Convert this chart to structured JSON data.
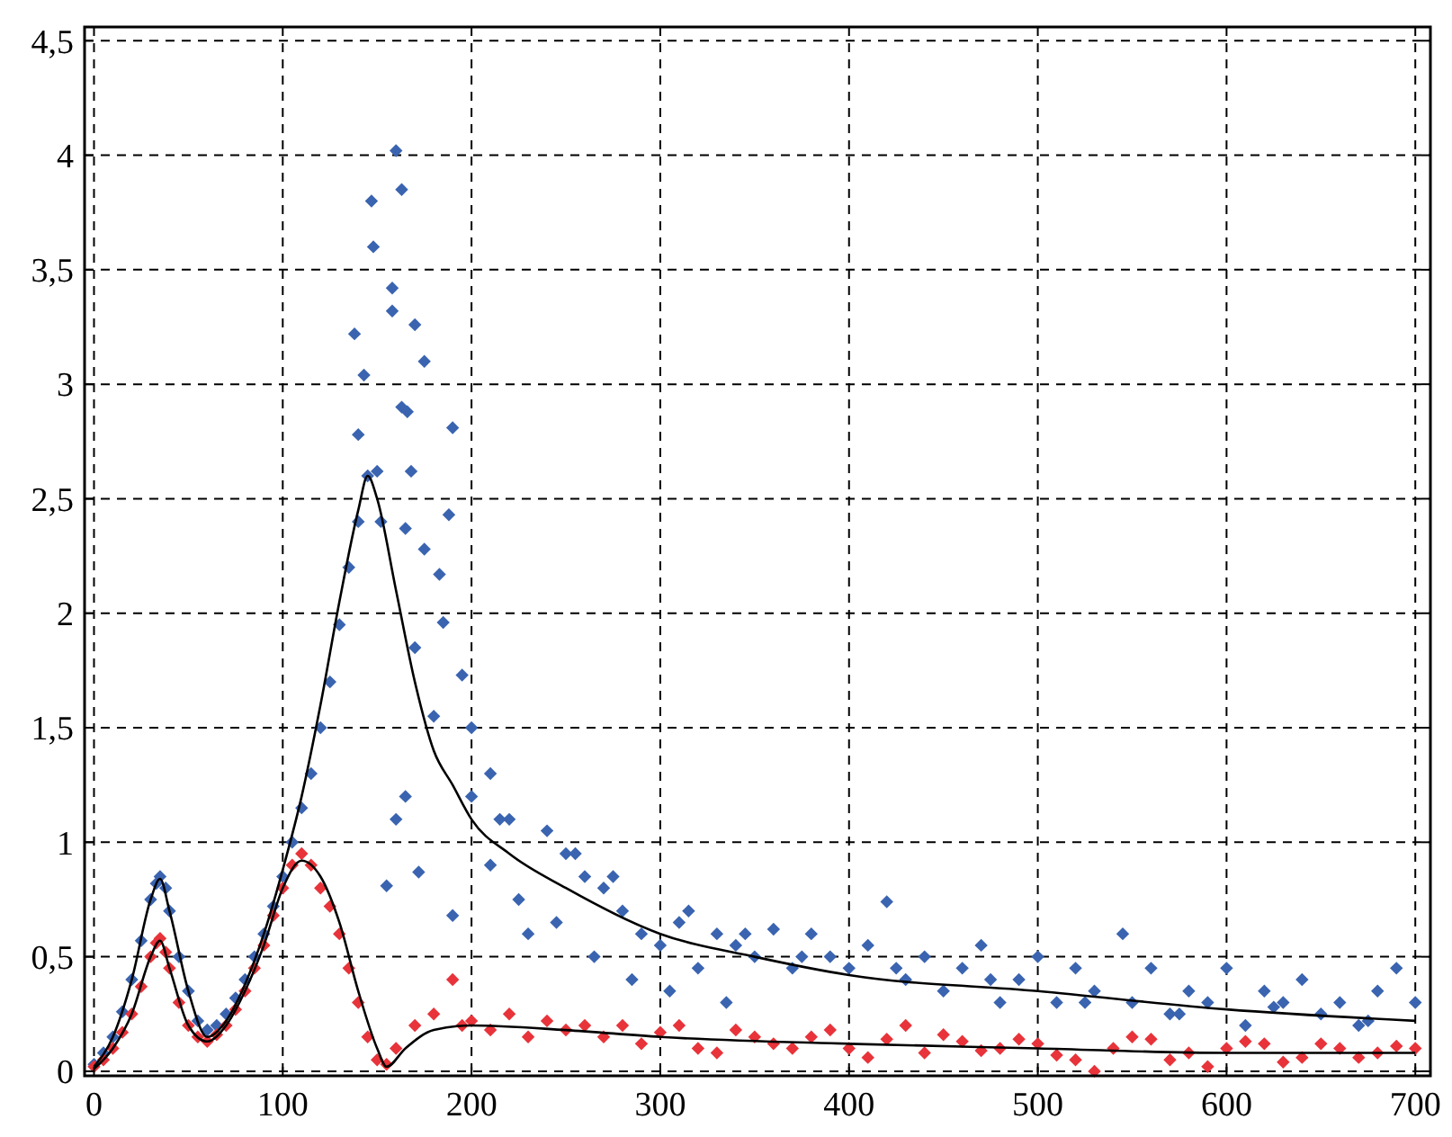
{
  "chart_data": {
    "type": "scatter",
    "grid": true,
    "xlim": [
      -5,
      708
    ],
    "ylim": [
      -0.02,
      4.56
    ],
    "xticks": [
      0,
      100,
      200,
      300,
      400,
      500,
      600,
      700
    ],
    "yticks": [
      0,
      {
        "value": 0.5,
        "label": "0,5"
      },
      1,
      {
        "value": 1.5,
        "label": "1,5"
      },
      2,
      {
        "value": 2.5,
        "label": "2,5"
      },
      3,
      {
        "value": 3.5,
        "label": "3,5"
      },
      4,
      {
        "value": 4.5,
        "label": "4,5"
      }
    ],
    "series": [
      {
        "marker": "diamond",
        "color": "#3a64b0",
        "x": [
          0,
          5,
          10,
          15,
          20,
          25,
          30,
          33,
          35,
          38,
          40,
          45,
          50,
          55,
          60,
          65,
          70,
          75,
          80,
          85,
          90,
          95,
          100,
          105,
          110,
          115,
          120,
          125,
          130,
          135,
          140,
          145,
          138,
          143,
          147,
          148,
          152,
          140,
          150,
          160,
          163,
          158,
          158,
          163,
          166,
          170,
          175,
          168,
          190,
          188,
          165,
          175,
          183,
          185,
          195,
          200,
          170,
          180,
          160,
          155,
          165,
          172,
          190,
          200,
          210,
          220,
          230,
          240,
          250,
          260,
          270,
          280,
          290,
          300,
          310,
          320,
          330,
          340,
          350,
          360,
          370,
          380,
          390,
          400,
          410,
          420,
          430,
          440,
          450,
          460,
          470,
          480,
          490,
          500,
          510,
          520,
          530,
          545,
          550,
          560,
          570,
          580,
          590,
          600,
          610,
          620,
          630,
          640,
          650,
          660,
          670,
          680,
          690,
          700,
          210,
          225,
          245,
          265,
          285,
          305,
          335,
          215,
          255,
          275,
          315,
          345,
          375,
          425,
          475,
          525,
          575,
          625,
          675
        ],
        "values": [
          0.03,
          0.08,
          0.15,
          0.26,
          0.4,
          0.57,
          0.75,
          0.82,
          0.85,
          0.8,
          0.7,
          0.5,
          0.35,
          0.22,
          0.18,
          0.2,
          0.25,
          0.32,
          0.4,
          0.5,
          0.6,
          0.72,
          0.85,
          1.0,
          1.15,
          1.3,
          1.5,
          1.7,
          1.95,
          2.2,
          2.4,
          2.6,
          3.22,
          3.04,
          3.8,
          3.6,
          2.4,
          2.78,
          2.62,
          4.02,
          3.85,
          3.42,
          3.32,
          2.9,
          2.88,
          3.26,
          3.1,
          2.62,
          2.81,
          2.43,
          2.37,
          2.28,
          2.17,
          1.96,
          1.73,
          1.5,
          1.85,
          1.55,
          1.1,
          0.81,
          1.2,
          0.87,
          0.68,
          1.2,
          1.3,
          1.1,
          0.6,
          1.05,
          0.95,
          0.85,
          0.8,
          0.7,
          0.6,
          0.55,
          0.65,
          0.45,
          0.6,
          0.55,
          0.5,
          0.62,
          0.45,
          0.6,
          0.5,
          0.45,
          0.55,
          0.74,
          0.4,
          0.5,
          0.35,
          0.45,
          0.55,
          0.3,
          0.4,
          0.5,
          0.3,
          0.45,
          0.35,
          0.6,
          0.3,
          0.45,
          0.25,
          0.35,
          0.3,
          0.45,
          0.2,
          0.35,
          0.3,
          0.4,
          0.25,
          0.3,
          0.2,
          0.35,
          0.45,
          0.3,
          0.9,
          0.75,
          0.65,
          0.5,
          0.4,
          0.35,
          0.3,
          1.1,
          0.95,
          0.85,
          0.7,
          0.6,
          0.5,
          0.45,
          0.4,
          0.3,
          0.25,
          0.28,
          0.22
        ]
      },
      {
        "marker": "diamond",
        "color": "#e8333a",
        "x": [
          0,
          5,
          10,
          15,
          20,
          25,
          30,
          33,
          35,
          38,
          40,
          45,
          50,
          55,
          60,
          65,
          70,
          75,
          80,
          85,
          90,
          95,
          100,
          105,
          110,
          115,
          120,
          125,
          130,
          135,
          140,
          145,
          150,
          155,
          160,
          170,
          180,
          190,
          195,
          200,
          210,
          220,
          230,
          240,
          250,
          260,
          270,
          280,
          290,
          300,
          320,
          340,
          360,
          380,
          400,
          420,
          430,
          440,
          460,
          480,
          500,
          520,
          530,
          540,
          560,
          580,
          590,
          600,
          620,
          640,
          660,
          680,
          700,
          310,
          330,
          350,
          370,
          390,
          410,
          450,
          470,
          490,
          510,
          550,
          570,
          610,
          630,
          650,
          670,
          690
        ],
        "values": [
          0.02,
          0.05,
          0.1,
          0.17,
          0.25,
          0.37,
          0.5,
          0.56,
          0.58,
          0.52,
          0.45,
          0.3,
          0.2,
          0.15,
          0.13,
          0.16,
          0.2,
          0.27,
          0.35,
          0.45,
          0.55,
          0.68,
          0.8,
          0.9,
          0.95,
          0.9,
          0.8,
          0.72,
          0.6,
          0.45,
          0.3,
          0.15,
          0.05,
          0.03,
          0.1,
          0.2,
          0.25,
          0.4,
          0.2,
          0.22,
          0.18,
          0.25,
          0.15,
          0.22,
          0.18,
          0.2,
          0.15,
          0.2,
          0.12,
          0.17,
          0.1,
          0.18,
          0.12,
          0.15,
          0.1,
          0.14,
          0.2,
          0.08,
          0.13,
          0.1,
          0.12,
          0.05,
          0.0,
          0.1,
          0.14,
          0.08,
          0.02,
          0.1,
          0.12,
          0.06,
          0.1,
          0.08,
          0.1,
          0.2,
          0.08,
          0.15,
          0.1,
          0.18,
          0.06,
          0.16,
          0.09,
          0.14,
          0.07,
          0.15,
          0.05,
          0.13,
          0.04,
          0.12,
          0.06,
          0.11
        ]
      },
      {
        "type": "line",
        "marker": "none",
        "color": "#000000",
        "x": [
          0,
          10,
          20,
          30,
          35,
          40,
          50,
          60,
          70,
          80,
          90,
          100,
          110,
          120,
          130,
          140,
          145,
          150,
          160,
          170,
          180,
          190,
          200,
          220,
          250,
          300,
          350,
          400,
          500,
          600,
          700
        ],
        "values": [
          0.02,
          0.15,
          0.4,
          0.75,
          0.84,
          0.7,
          0.35,
          0.15,
          0.22,
          0.38,
          0.6,
          0.88,
          1.2,
          1.6,
          2.05,
          2.45,
          2.6,
          2.5,
          2.1,
          1.7,
          1.4,
          1.25,
          1.1,
          0.95,
          0.8,
          0.6,
          0.5,
          0.42,
          0.35,
          0.27,
          0.22
        ]
      },
      {
        "type": "line",
        "marker": "none",
        "color": "#000000",
        "x": [
          0,
          10,
          20,
          30,
          35,
          40,
          50,
          60,
          70,
          80,
          90,
          100,
          110,
          120,
          130,
          140,
          150,
          155,
          165,
          180,
          200,
          250,
          300,
          400,
          500,
          600,
          700
        ],
        "values": [
          0.01,
          0.1,
          0.25,
          0.5,
          0.57,
          0.45,
          0.2,
          0.13,
          0.2,
          0.35,
          0.55,
          0.8,
          0.92,
          0.85,
          0.65,
          0.35,
          0.1,
          0.02,
          0.1,
          0.18,
          0.2,
          0.18,
          0.15,
          0.12,
          0.1,
          0.08,
          0.08
        ]
      }
    ]
  }
}
